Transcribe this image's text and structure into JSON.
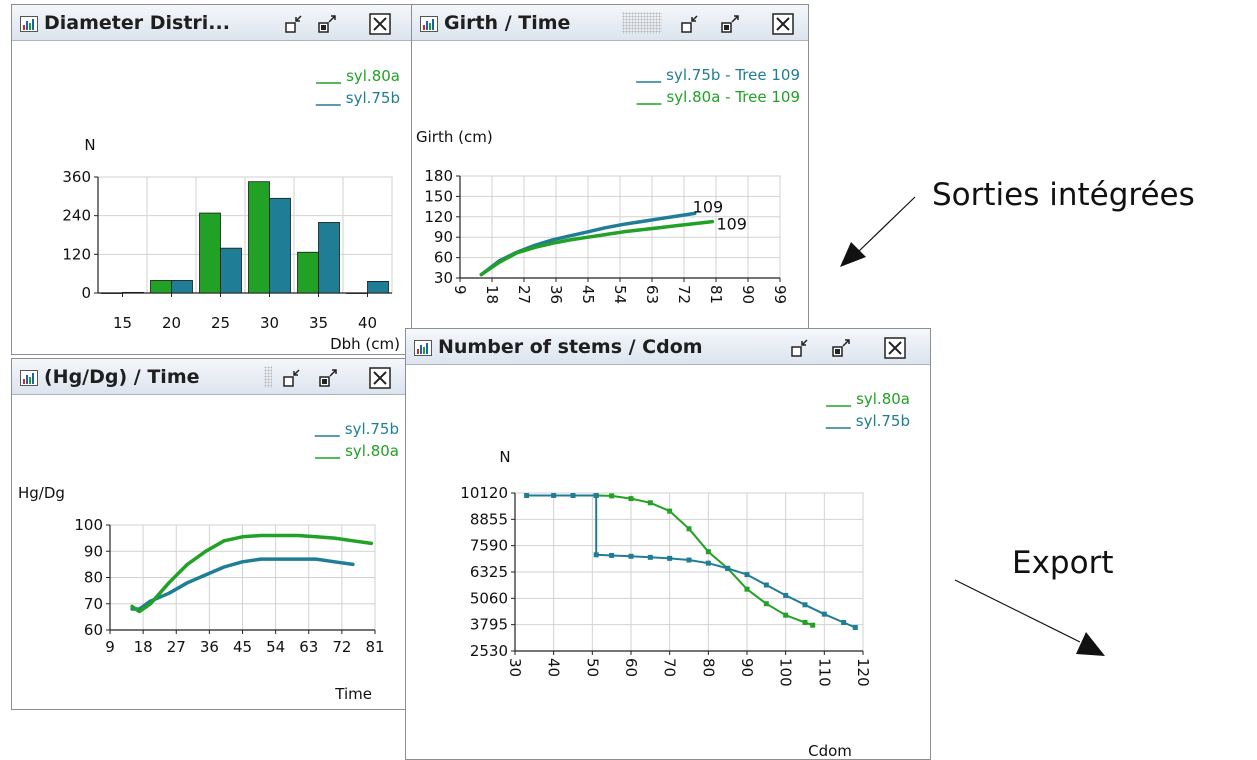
{
  "colors": {
    "green": "#21a125",
    "teal": "#1f7d96"
  },
  "annotations": {
    "integrated": "Sorties intégrées",
    "export": "Export"
  },
  "windows": {
    "diameter": {
      "title": "Diameter Distri..."
    },
    "girth": {
      "title": "Girth / Time"
    },
    "hgdg": {
      "title": "(Hg/Dg) / Time"
    },
    "stems": {
      "title": "Number of stems / Cdom"
    }
  },
  "chart_data": [
    {
      "type": "bar",
      "window": "diameter",
      "xlabel": "Dbh (cm)",
      "ylabel": "N",
      "y_ticks": [
        "0",
        "120",
        "240",
        "360"
      ],
      "ylim": [
        0,
        370
      ],
      "x_ticks": [
        "15",
        "20",
        "25",
        "30",
        "35",
        "40"
      ],
      "categories": [
        "15",
        "20",
        "25",
        "30",
        "35",
        "40"
      ],
      "legend": [
        "syl.80a",
        "syl.75b"
      ],
      "series": [
        {
          "name": "syl.80a",
          "color": "green",
          "values": [
            0,
            40,
            255,
            355,
            130,
            0
          ]
        },
        {
          "name": "syl.75b",
          "color": "teal",
          "values": [
            2,
            40,
            143,
            302,
            225,
            37
          ]
        }
      ]
    },
    {
      "type": "line",
      "window": "girth",
      "ylabel": "Girth (cm)",
      "y_ticks": [
        "30",
        "60",
        "90",
        "120",
        "150",
        "180"
      ],
      "ylim": [
        30,
        180
      ],
      "x_ticks": [
        "9",
        "18",
        "27",
        "36",
        "45",
        "54",
        "63",
        "72",
        "81",
        "90",
        "99"
      ],
      "xlim": [
        9,
        99
      ],
      "legend": [
        "syl.75b - Tree 109",
        "syl.80a - Tree 109"
      ],
      "end_labels": [
        "109",
        "109"
      ],
      "series": [
        {
          "name": "syl.75b - Tree 109",
          "color": "teal",
          "x": [
            15,
            20,
            25,
            30,
            35,
            40,
            45,
            50,
            55,
            60,
            65,
            70,
            75
          ],
          "y": [
            35,
            55,
            68,
            78,
            86,
            92,
            98,
            104,
            109,
            113,
            117,
            121,
            125
          ]
        },
        {
          "name": "syl.80a - Tree 109",
          "color": "green",
          "x": [
            15,
            20,
            25,
            30,
            35,
            40,
            45,
            50,
            55,
            60,
            65,
            70,
            75,
            80
          ],
          "y": [
            35,
            53,
            67,
            75,
            81,
            86,
            90,
            94,
            98,
            101,
            104,
            107,
            110,
            113
          ]
        }
      ]
    },
    {
      "type": "line",
      "window": "hgdg",
      "xlabel": "Time",
      "ylabel": "Hg/Dg",
      "y_ticks": [
        "60",
        "70",
        "80",
        "90",
        "100"
      ],
      "ylim": [
        60,
        100
      ],
      "x_ticks": [
        "9",
        "18",
        "27",
        "36",
        "45",
        "54",
        "63",
        "72",
        "81"
      ],
      "xlim": [
        9,
        81
      ],
      "legend": [
        "syl.75b",
        "syl.80a"
      ],
      "series": [
        {
          "name": "syl.75b",
          "color": "teal",
          "x": [
            15,
            17,
            20,
            25,
            30,
            35,
            40,
            45,
            50,
            55,
            60,
            65,
            70,
            75
          ],
          "y": [
            68,
            68,
            71,
            74,
            78,
            81,
            84,
            86,
            87,
            87,
            87,
            87,
            86,
            85
          ]
        },
        {
          "name": "syl.80a",
          "color": "green",
          "x": [
            15,
            17,
            20,
            25,
            30,
            35,
            40,
            45,
            50,
            55,
            60,
            65,
            70,
            75,
            80
          ],
          "y": [
            69,
            67,
            70,
            78,
            85,
            90,
            94,
            95.5,
            96,
            96,
            96,
            95.5,
            95,
            94,
            93
          ]
        }
      ]
    },
    {
      "type": "line",
      "window": "stems",
      "xlabel": "Cdom",
      "ylabel": "N",
      "y_ticks": [
        "2530",
        "3795",
        "5060",
        "6325",
        "7590",
        "8855",
        "10120"
      ],
      "ylim": [
        2530,
        10120
      ],
      "x_ticks": [
        "30",
        "40",
        "50",
        "60",
        "70",
        "80",
        "90",
        "100",
        "110",
        "120"
      ],
      "xlim": [
        30,
        120
      ],
      "legend": [
        "syl.80a",
        "syl.75b"
      ],
      "series": [
        {
          "name": "syl.80a",
          "color": "green",
          "x": [
            51,
            55,
            60,
            65,
            70,
            75,
            80,
            85,
            90,
            95,
            100,
            105,
            107
          ],
          "y": [
            10000,
            9980,
            9850,
            9650,
            9250,
            8400,
            7300,
            6500,
            5500,
            4800,
            4250,
            3900,
            3770
          ]
        },
        {
          "name": "syl.75b",
          "color": "teal",
          "x": [
            33,
            40,
            45,
            51,
            51,
            55,
            60,
            65,
            70,
            75,
            80,
            85,
            90,
            95,
            100,
            105,
            110,
            115,
            118
          ],
          "y": [
            10000,
            10000,
            10000,
            10000,
            7150,
            7120,
            7080,
            7030,
            6980,
            6900,
            6750,
            6500,
            6200,
            5700,
            5200,
            4750,
            4300,
            3900,
            3660
          ]
        }
      ]
    }
  ]
}
